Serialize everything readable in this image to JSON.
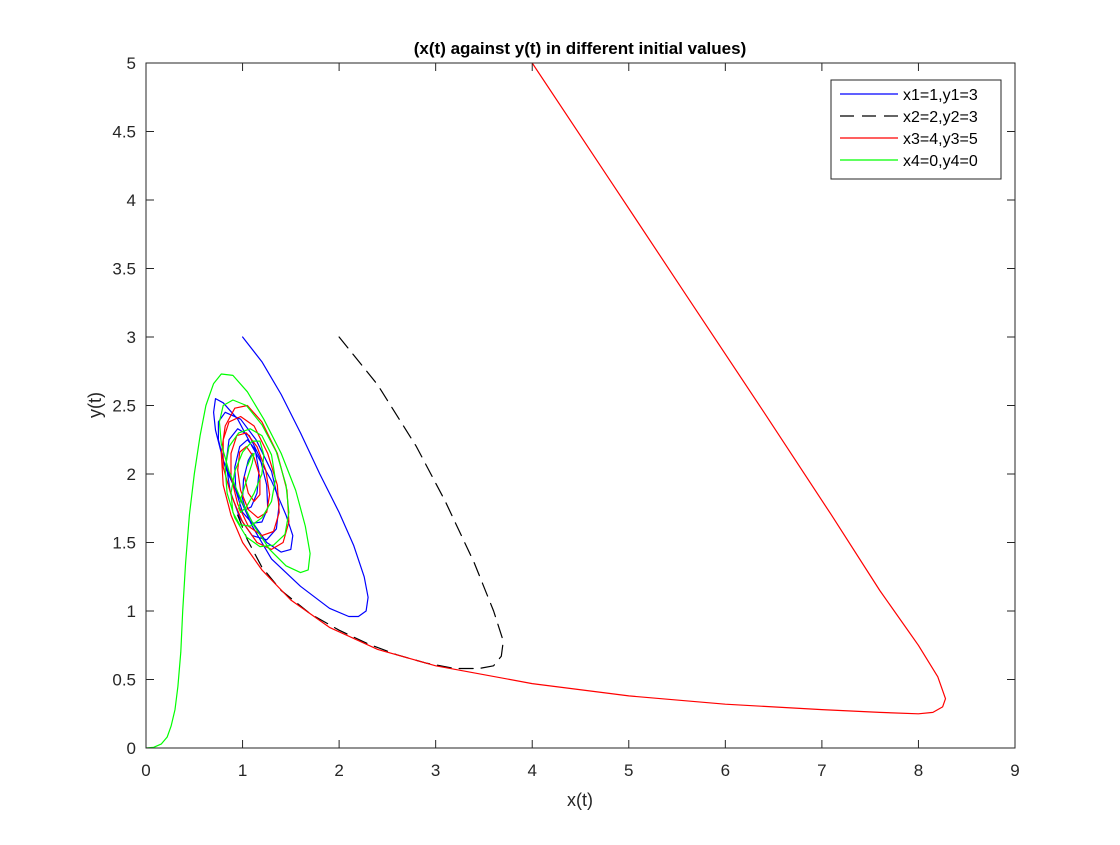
{
  "chart_data": {
    "type": "line",
    "title": "(x(t) against y(t) in different initial values)",
    "xlabel": "x(t)",
    "ylabel": "y(t)",
    "xlim": [
      0,
      9
    ],
    "ylim": [
      0,
      5
    ],
    "xticks": [
      0,
      1,
      2,
      3,
      4,
      5,
      6,
      7,
      8,
      9
    ],
    "yticks": [
      0,
      0.5,
      1,
      1.5,
      2,
      2.5,
      3,
      3.5,
      4,
      4.5,
      5
    ],
    "xtick_labels": [
      "0",
      "1",
      "2",
      "3",
      "4",
      "5",
      "6",
      "7",
      "8",
      "9"
    ],
    "ytick_labels": [
      "0",
      "0.5",
      "1",
      "1.5",
      "2",
      "2.5",
      "3",
      "3.5",
      "4",
      "4.5",
      "5"
    ],
    "grid": false,
    "legend_position": "top-right",
    "series": [
      {
        "name": "x1=1,y1=3",
        "color": "#0000ff",
        "dash": "solid",
        "x": [
          1.0,
          1.2,
          1.4,
          1.6,
          1.8,
          2.0,
          2.15,
          2.26,
          2.3,
          2.28,
          2.2,
          2.1,
          1.9,
          1.6,
          1.3,
          1.1,
          0.95,
          0.8,
          0.72,
          0.7,
          0.72,
          0.8,
          0.95,
          1.1,
          1.3,
          1.45,
          1.52,
          1.5,
          1.4,
          1.25,
          1.1,
          0.95,
          0.82,
          0.75,
          0.75,
          0.82,
          0.98,
          1.14,
          1.3,
          1.38,
          1.35,
          1.25,
          1.1,
          0.97,
          0.87,
          0.83,
          0.86,
          0.95,
          1.07,
          1.18,
          1.25,
          1.26,
          1.2,
          1.1,
          1.0,
          0.93,
          0.92,
          0.97,
          1.05,
          1.13,
          1.17,
          1.15,
          1.09,
          1.03,
          1.0,
          1.01,
          1.06,
          1.1
        ],
        "y": [
          3.0,
          2.82,
          2.58,
          2.3,
          2.0,
          1.72,
          1.48,
          1.25,
          1.1,
          1.0,
          0.96,
          0.96,
          1.02,
          1.18,
          1.38,
          1.62,
          1.86,
          2.1,
          2.32,
          2.45,
          2.55,
          2.52,
          2.4,
          2.2,
          1.95,
          1.7,
          1.55,
          1.45,
          1.43,
          1.5,
          1.65,
          1.85,
          2.05,
          2.25,
          2.38,
          2.45,
          2.4,
          2.25,
          2.02,
          1.78,
          1.6,
          1.52,
          1.55,
          1.68,
          1.88,
          2.08,
          2.25,
          2.33,
          2.28,
          2.12,
          1.92,
          1.75,
          1.65,
          1.64,
          1.72,
          1.88,
          2.05,
          2.2,
          2.25,
          2.18,
          2.02,
          1.86,
          1.76,
          1.74,
          1.82,
          1.96,
          2.1,
          2.15
        ]
      },
      {
        "name": "x2=2,y2=3",
        "color": "#000000",
        "dash": "dashed",
        "x": [
          2.0,
          2.4,
          2.8,
          3.1,
          3.4,
          3.6,
          3.7,
          3.68,
          3.6,
          3.45,
          3.2,
          2.9,
          2.6,
          2.3,
          2.0,
          1.7,
          1.4,
          1.2,
          1.05,
          0.95
        ],
        "y": [
          3.0,
          2.65,
          2.2,
          1.8,
          1.35,
          1.0,
          0.78,
          0.67,
          0.6,
          0.58,
          0.58,
          0.62,
          0.68,
          0.76,
          0.86,
          0.98,
          1.15,
          1.32,
          1.52,
          1.7
        ]
      },
      {
        "name": "x3=4,y3=5",
        "color": "#ff0000",
        "dash": "solid",
        "x": [
          4.0,
          4.8,
          5.6,
          6.4,
          7.1,
          7.6,
          8.0,
          8.2,
          8.28,
          8.25,
          8.15,
          8.0,
          7.6,
          7.0,
          6.0,
          5.0,
          4.0,
          3.0,
          2.4,
          1.9,
          1.5,
          1.2,
          1.0,
          0.88,
          0.8,
          0.78,
          0.82,
          0.92,
          1.05,
          1.2,
          1.36,
          1.46,
          1.48,
          1.42,
          1.3,
          1.15,
          1.0,
          0.88,
          0.8,
          0.8,
          0.86,
          0.98,
          1.12,
          1.26,
          1.36,
          1.38,
          1.32,
          1.2,
          1.06,
          0.95,
          0.88,
          0.88,
          0.94,
          1.04,
          1.15,
          1.24,
          1.28,
          1.25,
          1.16,
          1.06,
          0.98,
          0.95,
          0.97,
          1.04,
          1.12,
          1.18,
          1.18,
          1.12,
          1.06,
          1.02
        ],
        "y": [
          5.0,
          4.15,
          3.3,
          2.45,
          1.7,
          1.15,
          0.75,
          0.52,
          0.36,
          0.3,
          0.26,
          0.25,
          0.26,
          0.28,
          0.32,
          0.38,
          0.47,
          0.6,
          0.72,
          0.88,
          1.08,
          1.3,
          1.5,
          1.7,
          1.92,
          2.15,
          2.35,
          2.48,
          2.5,
          2.38,
          2.15,
          1.88,
          1.65,
          1.5,
          1.45,
          1.5,
          1.65,
          1.85,
          2.05,
          2.25,
          2.38,
          2.42,
          2.35,
          2.15,
          1.92,
          1.72,
          1.58,
          1.55,
          1.62,
          1.78,
          1.98,
          2.15,
          2.28,
          2.3,
          2.2,
          2.03,
          1.85,
          1.72,
          1.68,
          1.74,
          1.88,
          2.03,
          2.16,
          2.2,
          2.12,
          1.98,
          1.85,
          1.8,
          1.86,
          1.98
        ]
      },
      {
        "name": "x4=0,y4=0",
        "color": "#00ff00",
        "dash": "solid",
        "x": [
          0.0,
          0.08,
          0.16,
          0.22,
          0.26,
          0.3,
          0.33,
          0.36,
          0.38,
          0.41,
          0.45,
          0.5,
          0.56,
          0.62,
          0.7,
          0.78,
          0.9,
          1.05,
          1.22,
          1.4,
          1.55,
          1.65,
          1.7,
          1.68,
          1.6,
          1.45,
          1.28,
          1.12,
          0.98,
          0.86,
          0.78,
          0.76,
          0.8,
          0.9,
          1.04,
          1.2,
          1.35,
          1.45,
          1.48,
          1.44,
          1.32,
          1.18,
          1.04,
          0.92,
          0.84,
          0.82,
          0.86,
          0.96,
          1.08,
          1.2,
          1.3,
          1.34,
          1.3,
          1.2,
          1.08,
          0.97,
          0.9,
          0.88,
          0.92,
          1.0,
          1.1,
          1.18,
          1.22,
          1.2,
          1.12,
          1.04,
          0.98,
          0.96,
          0.99,
          1.05,
          1.1,
          1.12,
          1.1,
          1.05
        ],
        "y": [
          0.0,
          0.005,
          0.03,
          0.08,
          0.16,
          0.28,
          0.45,
          0.7,
          1.0,
          1.35,
          1.7,
          2.0,
          2.28,
          2.5,
          2.66,
          2.73,
          2.72,
          2.6,
          2.4,
          2.15,
          1.88,
          1.62,
          1.42,
          1.3,
          1.28,
          1.33,
          1.45,
          1.62,
          1.82,
          2.02,
          2.22,
          2.38,
          2.5,
          2.54,
          2.5,
          2.36,
          2.16,
          1.92,
          1.72,
          1.56,
          1.48,
          1.47,
          1.54,
          1.68,
          1.86,
          2.04,
          2.2,
          2.3,
          2.33,
          2.28,
          2.14,
          1.96,
          1.8,
          1.68,
          1.62,
          1.63,
          1.72,
          1.86,
          2.02,
          2.16,
          2.24,
          2.24,
          2.14,
          2.0,
          1.86,
          1.76,
          1.72,
          1.75,
          1.84,
          1.97,
          2.08,
          2.15,
          2.14,
          2.06
        ]
      }
    ]
  }
}
